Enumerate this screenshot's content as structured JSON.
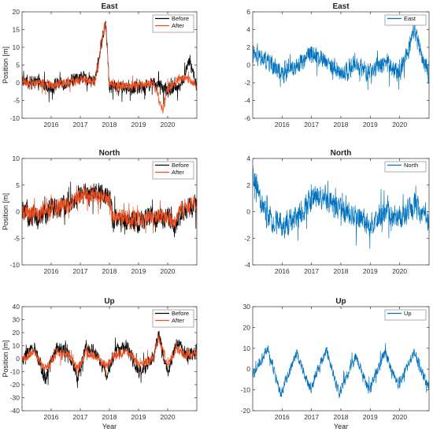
{
  "chart_data": [
    {
      "type": "line",
      "title": "East",
      "xlabel": "",
      "ylabel": "Position [m]",
      "xlim": [
        2015.0,
        2021.0
      ],
      "ylim": [
        -10,
        20
      ],
      "xticks": [
        2016,
        2017,
        2018,
        2019,
        2020
      ],
      "yticks": [
        -10,
        -5,
        0,
        5,
        10,
        15,
        20
      ],
      "grid": false,
      "legend": "top-right",
      "series": [
        {
          "name": "Before",
          "color": "#000000",
          "amp": 1.0,
          "noise": 1.6,
          "offset": 0.2,
          "x": [
            2015.0,
            2015.5,
            2016.0,
            2016.5,
            2017.0,
            2017.5,
            2017.87,
            2018.0,
            2018.5,
            2019.0,
            2019.5,
            2020.0,
            2020.5,
            2020.75,
            2021.0
          ],
          "y": [
            0.5,
            0,
            -1.0,
            0,
            1.5,
            0.5,
            17.5,
            -1.0,
            -1.5,
            -1.5,
            0,
            -2.5,
            0,
            6.5,
            -1.0
          ]
        },
        {
          "name": "After",
          "color": "#f04d1d",
          "amp": 0.7,
          "noise": 1.1,
          "offset": 0.0,
          "x": [
            2015.0,
            2015.5,
            2016.0,
            2016.5,
            2017.0,
            2017.5,
            2017.87,
            2018.0,
            2018.5,
            2019.0,
            2019.5,
            2019.83,
            2020.0,
            2020.5,
            2021.0
          ],
          "y": [
            0.3,
            0,
            -0.8,
            0,
            1.0,
            0.3,
            17.0,
            -0.5,
            -1.0,
            -1.0,
            0,
            -8.0,
            -1.5,
            1.5,
            -0.5
          ]
        }
      ]
    },
    {
      "type": "line",
      "title": "East",
      "xlabel": "",
      "ylabel": "",
      "xlim": [
        2015.0,
        2021.0
      ],
      "ylim": [
        -6,
        6
      ],
      "xticks": [
        2016,
        2017,
        2018,
        2019,
        2020
      ],
      "yticks": [
        -6,
        -4,
        -2,
        0,
        2,
        4,
        6
      ],
      "grid": false,
      "legend": "top-right",
      "series": [
        {
          "name": "East",
          "color": "#0072bd",
          "amp": 1.0,
          "noise": 0.9,
          "offset": 0.0,
          "x": [
            2015.0,
            2015.5,
            2016.0,
            2016.5,
            2017.0,
            2017.5,
            2018.0,
            2018.5,
            2019.0,
            2019.5,
            2020.0,
            2020.5,
            2020.75,
            2021.0
          ],
          "y": [
            1.0,
            0.5,
            -1.0,
            0,
            1.5,
            0.5,
            -1.0,
            0,
            -1.0,
            0.5,
            -1.0,
            4.0,
            1.0,
            -1.0
          ]
        }
      ]
    },
    {
      "type": "line",
      "title": "North",
      "xlabel": "",
      "ylabel": "Position [m]",
      "xlim": [
        2015.0,
        2021.0
      ],
      "ylim": [
        -10,
        10
      ],
      "xticks": [
        2016,
        2017,
        2018,
        2019,
        2020
      ],
      "yticks": [
        -10,
        -5,
        0,
        5,
        10
      ],
      "grid": false,
      "legend": "top-right",
      "series": [
        {
          "name": "Before",
          "color": "#000000",
          "amp": 1.0,
          "noise": 1.8,
          "offset": 0.0,
          "x": [
            2015.0,
            2015.5,
            2016.0,
            2016.5,
            2017.0,
            2017.5,
            2018.0,
            2018.1,
            2018.5,
            2019.0,
            2019.5,
            2020.0,
            2020.2,
            2020.5,
            2021.0
          ],
          "y": [
            0,
            -1.0,
            0.5,
            1.0,
            3.0,
            3.5,
            3.0,
            -1.0,
            -2.0,
            -2.0,
            -1.0,
            -1.0,
            -3.0,
            0,
            1.5
          ]
        },
        {
          "name": "After",
          "color": "#f04d1d",
          "amp": 0.8,
          "noise": 1.3,
          "offset": 0.0,
          "x": [
            2015.0,
            2015.5,
            2016.0,
            2016.5,
            2017.0,
            2017.5,
            2018.0,
            2018.1,
            2018.5,
            2019.0,
            2019.5,
            2020.0,
            2020.2,
            2020.5,
            2021.0
          ],
          "y": [
            0,
            -0.5,
            0.5,
            1.0,
            3.0,
            3.0,
            2.5,
            -1.0,
            -1.5,
            -1.5,
            -1.0,
            -1.0,
            -2.5,
            0.5,
            1.5
          ]
        }
      ]
    },
    {
      "type": "line",
      "title": "North",
      "xlabel": "",
      "ylabel": "",
      "xlim": [
        2015.0,
        2021.0
      ],
      "ylim": [
        -4,
        4
      ],
      "xticks": [
        2016,
        2017,
        2018,
        2019,
        2020
      ],
      "yticks": [
        -4,
        -2,
        0,
        2,
        4
      ],
      "grid": false,
      "legend": "top-right",
      "series": [
        {
          "name": "North",
          "color": "#0072bd",
          "amp": 1.0,
          "noise": 0.8,
          "offset": 0.0,
          "x": [
            2015.0,
            2015.3,
            2015.5,
            2016.0,
            2016.5,
            2017.0,
            2017.5,
            2018.0,
            2018.5,
            2019.0,
            2019.5,
            2020.0,
            2020.5,
            2021.0
          ],
          "y": [
            2.5,
            0.5,
            -0.5,
            -1.0,
            -0.5,
            1.0,
            1.0,
            0,
            -0.5,
            -1.0,
            0,
            -0.5,
            0.5,
            -0.5
          ]
        }
      ]
    },
    {
      "type": "line",
      "title": "Up",
      "xlabel": "Year",
      "ylabel": "Position [m]",
      "xlim": [
        2015.0,
        2021.0
      ],
      "ylim": [
        -40,
        40
      ],
      "xticks": [
        2016,
        2017,
        2018,
        2019,
        2020
      ],
      "yticks": [
        -40,
        -30,
        -20,
        -10,
        0,
        10,
        20,
        30,
        40
      ],
      "grid": false,
      "legend": "top-right",
      "series": [
        {
          "name": "Before",
          "color": "#000000",
          "amp": 1.0,
          "noise": 4.5,
          "offset": 0.0,
          "x": [
            2015.0,
            2015.4,
            2015.8,
            2016.2,
            2016.6,
            2016.9,
            2017.2,
            2017.6,
            2017.9,
            2018.2,
            2018.6,
            2019.0,
            2019.5,
            2019.7,
            2020.0,
            2020.3,
            2020.6,
            2021.0
          ],
          "y": [
            -2,
            10,
            -15,
            10,
            5,
            -15,
            10,
            2,
            -12,
            5,
            10,
            -10,
            0,
            18,
            -12,
            14,
            3,
            5
          ]
        },
        {
          "name": "After",
          "color": "#f04d1d",
          "amp": 0.6,
          "noise": 3.0,
          "offset": 0.0,
          "x": [
            2015.0,
            2015.4,
            2015.8,
            2016.2,
            2016.6,
            2016.9,
            2017.2,
            2017.6,
            2017.9,
            2018.2,
            2018.6,
            2019.0,
            2019.5,
            2019.7,
            2020.0,
            2020.3,
            2020.6,
            2021.0
          ],
          "y": [
            -1,
            5,
            -8,
            5,
            3,
            -8,
            5,
            1,
            -6,
            3,
            5,
            -5,
            0,
            15,
            -5,
            8,
            2,
            4
          ]
        }
      ]
    },
    {
      "type": "line",
      "title": "Up",
      "xlabel": "Year",
      "ylabel": "",
      "xlim": [
        2015.0,
        2021.0
      ],
      "ylim": [
        -20,
        30
      ],
      "xticks": [
        2016,
        2017,
        2018,
        2019,
        2020
      ],
      "yticks": [
        -20,
        -10,
        0,
        10,
        20,
        30
      ],
      "grid": false,
      "legend": "top-right",
      "series": [
        {
          "name": "Up",
          "color": "#0072bd",
          "amp": 1.0,
          "noise": 2.2,
          "offset": 0.0,
          "x": [
            2015.0,
            2015.5,
            2015.95,
            2016.5,
            2016.95,
            2017.5,
            2017.95,
            2018.5,
            2018.95,
            2019.5,
            2019.95,
            2020.5,
            2020.95
          ],
          "y": [
            -3,
            10,
            -12,
            8,
            -10,
            9,
            -12,
            6,
            -10,
            8,
            -8,
            8,
            -8
          ]
        }
      ]
    }
  ]
}
